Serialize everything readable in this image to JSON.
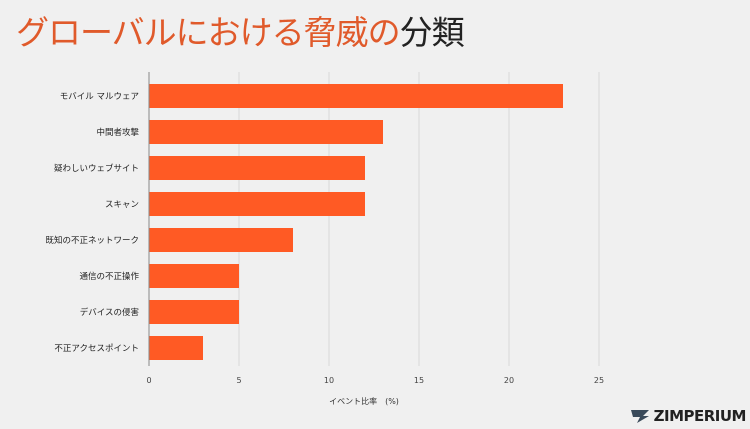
{
  "title": {
    "part1": "グローバルにおける脅威の",
    "part2": "分類"
  },
  "colors": {
    "bar": "#ff5a24",
    "title_accent": "#e05a2b",
    "grid": "#d8d8d8",
    "axis": "#888888"
  },
  "logo": {
    "text": "ZIMPERIUM",
    "icon": "zimperium-logo-icon"
  },
  "chart_data": {
    "type": "bar",
    "orientation": "horizontal",
    "categories": [
      "モバイル マルウェア",
      "中間者攻撃",
      "疑わしいウェブサイト",
      "スキャン",
      "既知の不正ネットワーク",
      "通信の不正操作",
      "デバイスの侵害",
      "不正アクセスポイント"
    ],
    "values": [
      23,
      13,
      12,
      12,
      8,
      5,
      5,
      3
    ],
    "xlabel": "イベント比率　(%)",
    "ylabel": "",
    "xlim": [
      0,
      25
    ],
    "xticks": [
      "0",
      "5",
      "10",
      "15",
      "20",
      "25"
    ],
    "grid": true
  }
}
